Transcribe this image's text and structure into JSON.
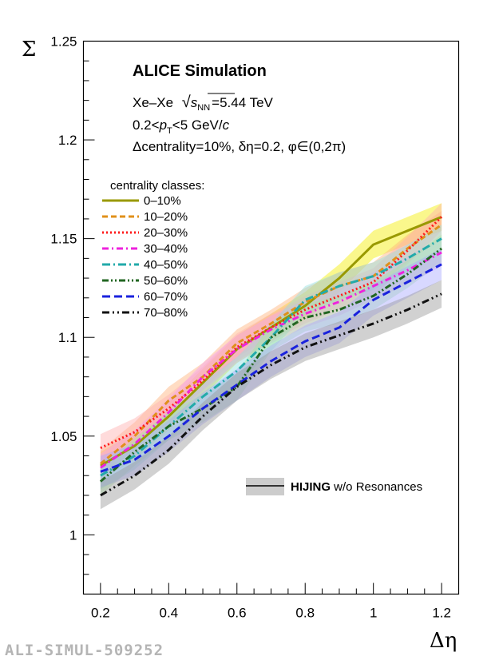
{
  "chart_data": {
    "type": "line",
    "x_label": "Δη",
    "y_label": "Σ",
    "xlim": [
      0.15,
      1.25
    ],
    "ylim": [
      0.97,
      1.25
    ],
    "x_ticks": [
      "0.2",
      "0.4",
      "0.6",
      "0.8",
      "1",
      "1.2"
    ],
    "y_ticks": [
      "1",
      "1.05",
      "1.1",
      "1.15",
      "1.2",
      "1.25"
    ],
    "x": [
      0.2,
      0.3,
      0.4,
      0.5,
      0.6,
      0.7,
      0.8,
      0.9,
      1.0,
      1.1,
      1.2
    ],
    "annotations": {
      "title": "ALICE Simulation",
      "system_prefix": "Xe–Xe",
      "sqrt_symbol": "√",
      "energy_s": "s",
      "energy_sub": "NN",
      "energy_value": "=5.44 TeV",
      "pt_prefix": "0.2<",
      "pt_p": "p",
      "pt_sub": "T",
      "pt_mid": "<5 GeV/",
      "pt_c": "c",
      "cuts": "Δcentrality=10%, δη=0.2, φ∈(0,2π)"
    },
    "legend_title": "centrality classes:",
    "series": [
      {
        "name": "0–10%",
        "color": "#999900",
        "dash": "",
        "band_color": "#f5ee00",
        "values": [
          1.035,
          1.045,
          1.06,
          1.077,
          1.094,
          1.105,
          1.116,
          1.13,
          1.147,
          1.154,
          1.161
        ],
        "band": 0.007
      },
      {
        "name": "10–20%",
        "color": "#e0901a",
        "dash": "7,4",
        "band_color": "#ffb27a",
        "values": [
          1.036,
          1.05,
          1.068,
          1.08,
          1.097,
          1.107,
          1.118,
          1.126,
          1.131,
          1.145,
          1.157
        ],
        "band": 0.007
      },
      {
        "name": "20–30%",
        "color": "#ff1a1a",
        "dash": "2,3",
        "band_color": "#ffb0b0",
        "values": [
          1.044,
          1.052,
          1.064,
          1.078,
          1.095,
          1.105,
          1.114,
          1.121,
          1.128,
          1.144,
          1.161
        ],
        "band": 0.007
      },
      {
        "name": "30–40%",
        "color": "#ee22dd",
        "dash": "8,4,2,4",
        "band_color": "#f5a0f0",
        "values": [
          1.034,
          1.046,
          1.062,
          1.08,
          1.094,
          1.104,
          1.112,
          1.118,
          1.126,
          1.134,
          1.143
        ],
        "band": 0.007
      },
      {
        "name": "40–50%",
        "color": "#22aaaa",
        "dash": "10,4,2,4",
        "band_color": "#90e0e0",
        "values": [
          1.03,
          1.04,
          1.055,
          1.07,
          1.083,
          1.1,
          1.119,
          1.126,
          1.131,
          1.14,
          1.15
        ],
        "band": 0.007
      },
      {
        "name": "50–60%",
        "color": "#226622",
        "dash": "8,3,2,3,2,3",
        "band_color": "#a8e6a0",
        "values": [
          1.027,
          1.042,
          1.055,
          1.064,
          1.075,
          1.1,
          1.11,
          1.114,
          1.121,
          1.132,
          1.145
        ],
        "band": 0.007
      },
      {
        "name": "60–70%",
        "color": "#1a22dd",
        "dash": "10,5",
        "band_color": "#a9a8ff",
        "values": [
          1.032,
          1.038,
          1.05,
          1.064,
          1.076,
          1.088,
          1.098,
          1.105,
          1.119,
          1.128,
          1.137
        ],
        "band": 0.008
      },
      {
        "name": "70–80%",
        "color": "#111111",
        "dash": "9,4,2,4,2,4",
        "band_color": "#9a9a9a",
        "values": [
          1.02,
          1.03,
          1.043,
          1.06,
          1.075,
          1.086,
          1.095,
          1.101,
          1.107,
          1.114,
          1.122
        ],
        "band": 0.007
      }
    ],
    "hijing_label_bold": "HIJING",
    "hijing_label_rest": " w/o Resonances"
  },
  "watermark": "ALI-SIMUL-509252"
}
